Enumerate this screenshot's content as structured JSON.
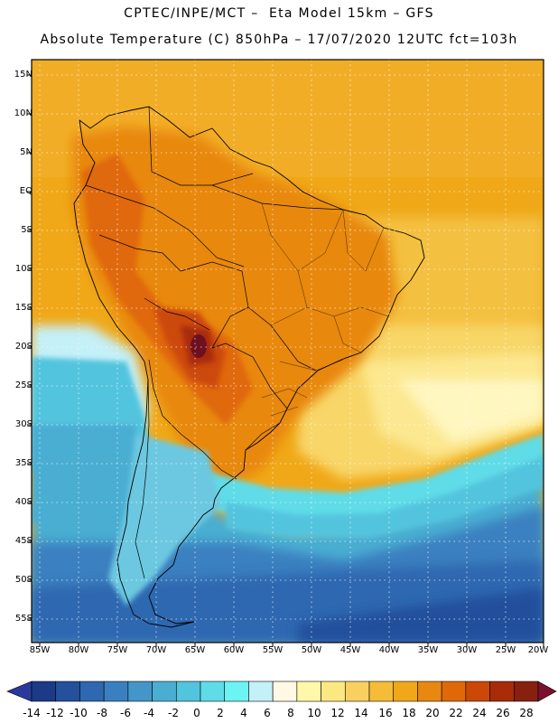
{
  "header": {
    "line1": "CPTEC/INPE/MCT –  Eta Model 15km – GFS",
    "line2": "Absolute Temperature (C) 850hPa – 17/07/2020 12UTC fct=103h"
  },
  "map": {
    "region": "South America",
    "lat_labels": [
      "15N",
      "10N",
      "5N",
      "EQ",
      "5S",
      "10S",
      "15S",
      "20S",
      "25S",
      "30S",
      "35S",
      "40S",
      "45S",
      "50S",
      "55S"
    ],
    "lon_labels": [
      "85W",
      "80W",
      "75W",
      "70W",
      "65W",
      "60W",
      "55W",
      "50W",
      "45W",
      "40W",
      "35W",
      "30W",
      "25W",
      "20W"
    ],
    "hotspot_label": ""
  },
  "colorbar": {
    "labels": [
      "-14",
      "-12",
      "-10",
      "-8",
      "-6",
      "-4",
      "-2",
      "0",
      "2",
      "4",
      "6",
      "8",
      "10",
      "12",
      "14",
      "16",
      "18",
      "20",
      "22",
      "24",
      "26",
      "28"
    ],
    "colors": [
      "#1c3a88",
      "#24509c",
      "#2e68b0",
      "#3a80c0",
      "#4496c8",
      "#4aaed2",
      "#52c4de",
      "#5edce8",
      "#6cf4f4",
      "#c4f0f8",
      "#fff8e4",
      "#fff8a8",
      "#fce880",
      "#f8d060",
      "#f4bc38",
      "#f0a818",
      "#e88810",
      "#e06808",
      "#cc4808",
      "#a82c08",
      "#882010",
      "#6e1020"
    ],
    "under_color": "#2a3a9c",
    "over_color": "#7c1030"
  }
}
